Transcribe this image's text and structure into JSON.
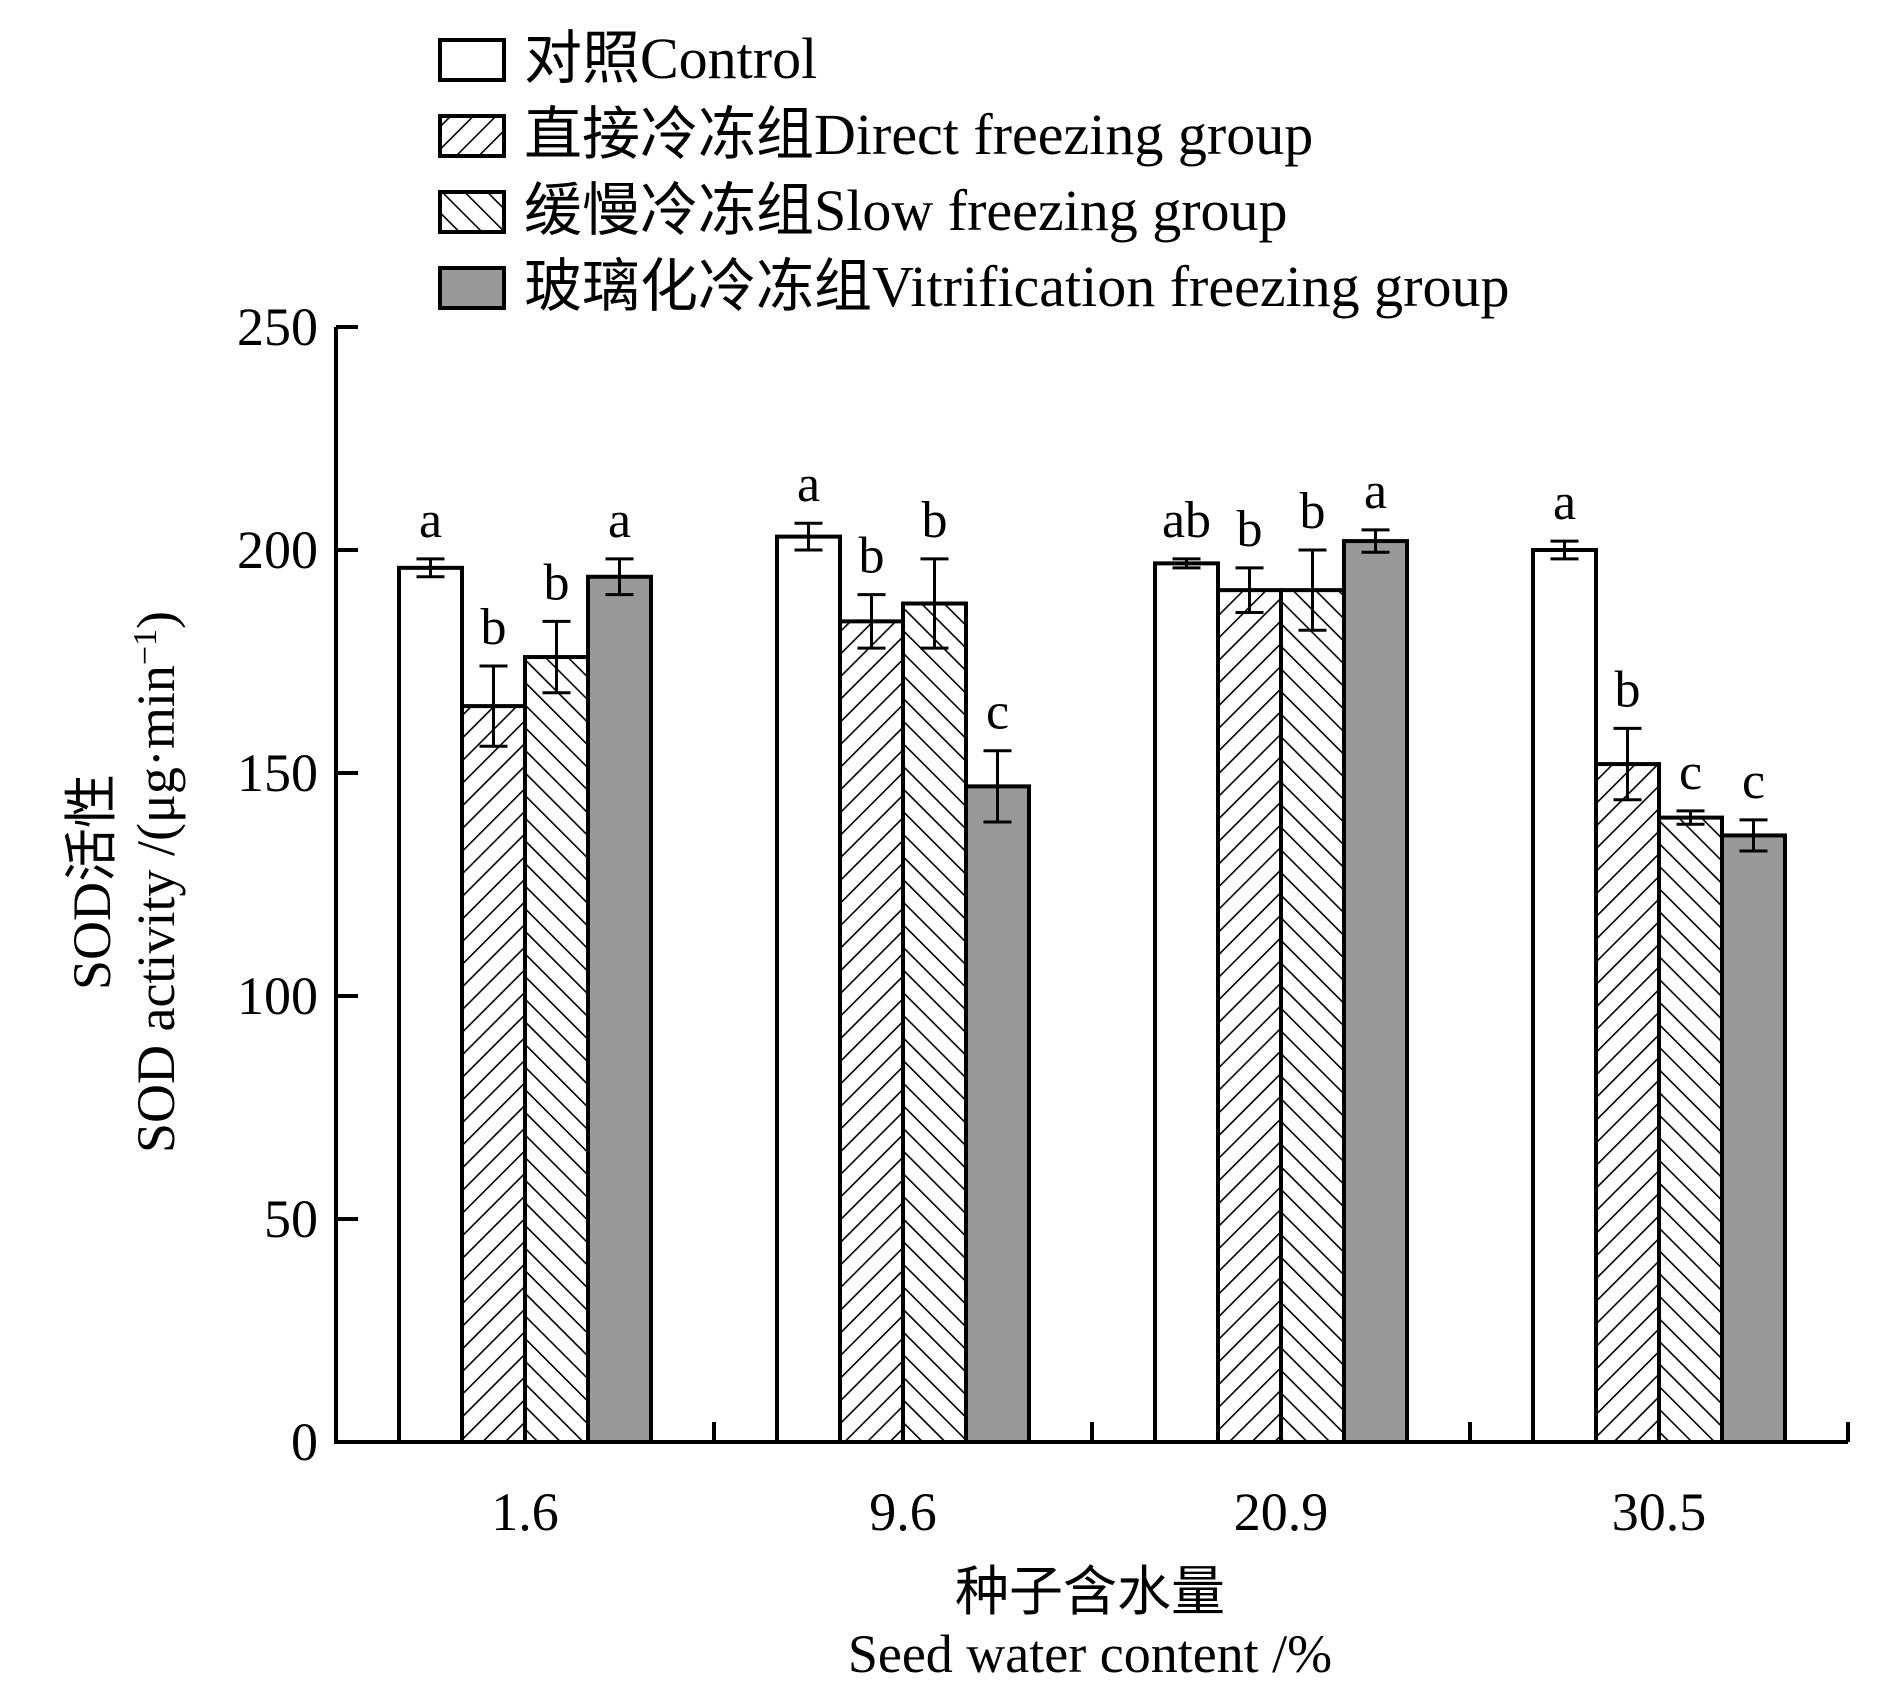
{
  "chart_data": {
    "type": "bar",
    "title": "",
    "xlabel_cn": "种子含水量",
    "xlabel": "Seed water content /%",
    "ylabel_cn": "SOD活性",
    "ylabel_main": "SOD activity /(μg·min",
    "ylabel_sup": "−1",
    "ylabel_close": ")",
    "ylim": [
      0,
      250
    ],
    "yticks": [
      "0",
      "50",
      "100",
      "150",
      "200",
      "250"
    ],
    "categories": [
      "1.6",
      "9.6",
      "20.9",
      "30.5"
    ],
    "legend_position": "top",
    "grid": false,
    "series": [
      {
        "name": "对照Control",
        "fill": "white",
        "values": [
          196,
          203,
          197,
          200
        ],
        "errors": [
          2,
          3,
          1,
          2
        ],
        "labels": [
          "a",
          "a",
          "ab",
          "a"
        ]
      },
      {
        "name": "直接冷冻组Direct freezing group",
        "fill": "hatch-forward",
        "values": [
          165,
          184,
          191,
          152
        ],
        "errors": [
          9,
          6,
          5,
          8
        ],
        "labels": [
          "b",
          "b",
          "b",
          "b"
        ]
      },
      {
        "name": "缓慢冷冻组Slow freezing group",
        "fill": "hatch-backward",
        "values": [
          176,
          188,
          191,
          140
        ],
        "errors": [
          8,
          10,
          9,
          1.5
        ],
        "labels": [
          "b",
          "b",
          "b",
          "c"
        ]
      },
      {
        "name": "玻璃化冷冻组Vitrification freezing group",
        "fill": "gray",
        "values": [
          194,
          147,
          202,
          136
        ],
        "errors": [
          4,
          8,
          2.5,
          3.5
        ],
        "labels": [
          "a",
          "c",
          "a",
          "c"
        ]
      }
    ],
    "colors": {
      "gray": "#999999",
      "stroke": "#000000"
    }
  }
}
